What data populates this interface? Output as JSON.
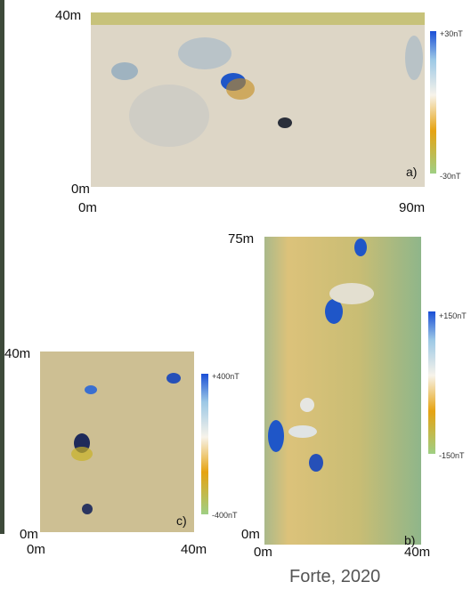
{
  "panels": [
    {
      "y_max_label": "40m",
      "y_min_label": "0m",
      "x_min_label": "0m",
      "x_max_label": "90m",
      "scale_max": "+30nT",
      "scale_min": "-30nT",
      "label": "a)"
    },
    {
      "y_max_label": "75m",
      "y_min_label": "0m",
      "x_min_label": "0m",
      "x_max_label": "40m",
      "scale_max": "+150nT",
      "scale_min": "-150nT",
      "label": "b)"
    },
    {
      "y_max_label": "40m",
      "y_min_label": "0m",
      "x_min_label": "0m",
      "x_max_label": "40m",
      "scale_max": "+400nT",
      "scale_min": "-400nT",
      "label": "c)"
    }
  ],
  "credit": "Forte, 2020"
}
